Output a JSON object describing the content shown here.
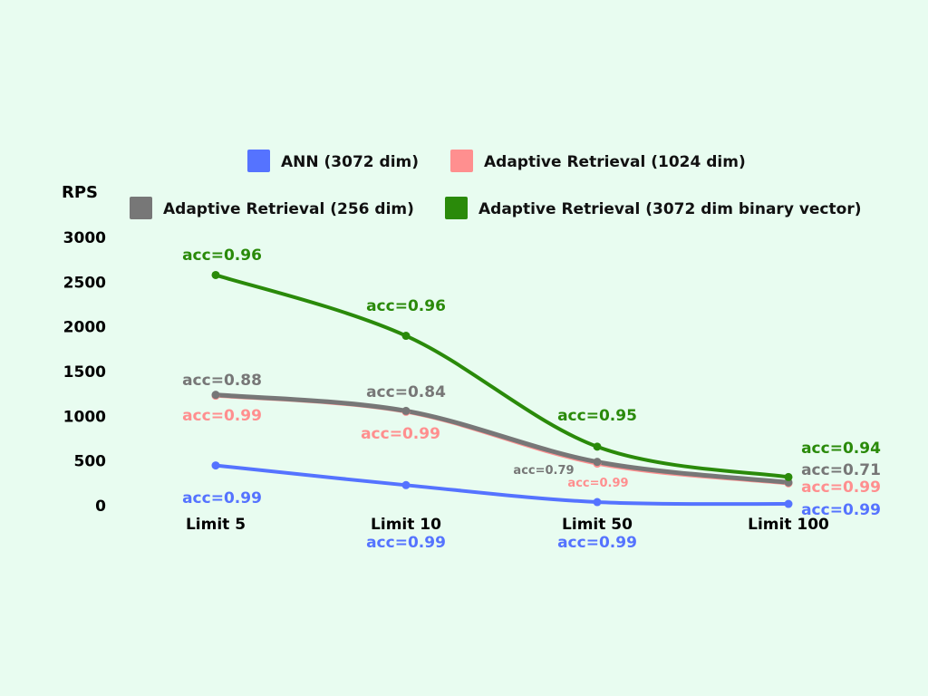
{
  "chart_data": {
    "type": "line",
    "ylabel": "RPS",
    "ylim": [
      0,
      3000
    ],
    "yticks": [
      0,
      500,
      1000,
      1500,
      2000,
      2500,
      3000
    ],
    "categories": [
      "Limit 5",
      "Limit 10",
      "Limit 50",
      "Limit 100"
    ],
    "legend_placement": "top",
    "grid": false,
    "series": [
      {
        "name": "ANN (3072 dim)",
        "color": "#5573ff",
        "values": [
          450,
          230,
          40,
          20
        ],
        "labels": [
          "acc=0.99",
          "acc=0.99",
          "acc=0.99",
          "acc=0.99"
        ]
      },
      {
        "name": "Adaptive Retrieval (1024 dim)",
        "color": "#ff8f8f",
        "values": [
          1230,
          1050,
          470,
          250
        ],
        "labels": [
          "acc=0.99",
          "acc=0.99",
          "acc=0.99",
          "acc=0.99"
        ]
      },
      {
        "name": "Adaptive Retrieval (256 dim)",
        "color": "#777777",
        "values": [
          1240,
          1060,
          490,
          260
        ],
        "labels": [
          "acc=0.88",
          "acc=0.84",
          "acc=0.79",
          "acc=0.71"
        ]
      },
      {
        "name": "Adaptive Retrieval (3072 dim binary vector)",
        "color": "#2a8a0a",
        "values": [
          2580,
          1900,
          660,
          320
        ],
        "labels": [
          "acc=0.96",
          "acc=0.96",
          "acc=0.95",
          "acc=0.94"
        ]
      }
    ]
  }
}
